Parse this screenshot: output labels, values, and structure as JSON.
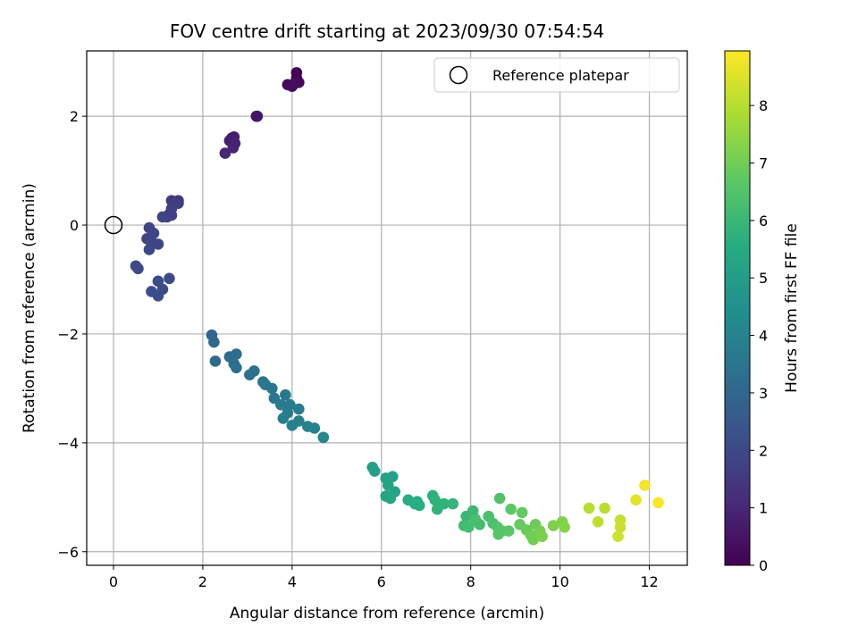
{
  "chart_data": {
    "type": "scatter",
    "title": "FOV centre drift starting at 2023/09/30 07:54:54",
    "xlabel": "Angular distance from reference (arcmin)",
    "ylabel": "Rotation from reference (arcmin)",
    "xlim": [
      -0.6,
      12.85
    ],
    "ylim": [
      -6.25,
      3.2
    ],
    "xticks": [
      0,
      2,
      4,
      6,
      8,
      10,
      12
    ],
    "yticks": [
      -6,
      -4,
      -2,
      0,
      2
    ],
    "grid": true,
    "legend": {
      "position": "top-right",
      "entries": [
        {
          "label": "Reference platepar",
          "marker": "open-circle"
        }
      ]
    },
    "reference_point": {
      "x": 0,
      "y": 0
    },
    "colorbar": {
      "label": "Hours from first FF file",
      "colormap": "viridis",
      "range": [
        0,
        8.95
      ],
      "ticks": [
        0,
        1,
        2,
        3,
        4,
        5,
        6,
        7,
        8
      ]
    },
    "points": [
      {
        "x": 4.1,
        "y": 2.8,
        "t": 0.05
      },
      {
        "x": 4.1,
        "y": 2.7,
        "t": 0.1
      },
      {
        "x": 4.15,
        "y": 2.62,
        "t": 0.15
      },
      {
        "x": 3.9,
        "y": 2.58,
        "t": 0.2
      },
      {
        "x": 4.0,
        "y": 2.55,
        "t": 0.25
      },
      {
        "x": 4.05,
        "y": 2.6,
        "t": 0.3
      },
      {
        "x": 3.2,
        "y": 2.0,
        "t": 0.5
      },
      {
        "x": 3.22,
        "y": 2.0,
        "t": 0.55
      },
      {
        "x": 2.65,
        "y": 1.6,
        "t": 0.7
      },
      {
        "x": 2.7,
        "y": 1.62,
        "t": 0.75
      },
      {
        "x": 2.6,
        "y": 1.55,
        "t": 0.8
      },
      {
        "x": 2.72,
        "y": 1.5,
        "t": 0.85
      },
      {
        "x": 2.68,
        "y": 1.42,
        "t": 0.9
      },
      {
        "x": 2.5,
        "y": 1.32,
        "t": 0.95
      },
      {
        "x": 1.3,
        "y": 0.45,
        "t": 1.5
      },
      {
        "x": 1.45,
        "y": 0.45,
        "t": 1.55
      },
      {
        "x": 1.45,
        "y": 0.4,
        "t": 1.6
      },
      {
        "x": 1.3,
        "y": 0.3,
        "t": 1.65
      },
      {
        "x": 1.25,
        "y": 0.2,
        "t": 1.7
      },
      {
        "x": 1.3,
        "y": 0.18,
        "t": 1.75
      },
      {
        "x": 1.2,
        "y": 0.15,
        "t": 1.75
      },
      {
        "x": 1.1,
        "y": 0.15,
        "t": 1.8
      },
      {
        "x": 0.8,
        "y": -0.05,
        "t": 1.8
      },
      {
        "x": 0.9,
        "y": -0.15,
        "t": 1.85
      },
      {
        "x": 0.75,
        "y": -0.25,
        "t": 1.85
      },
      {
        "x": 0.85,
        "y": -0.3,
        "t": 1.9
      },
      {
        "x": 1.0,
        "y": -0.35,
        "t": 1.9
      },
      {
        "x": 0.8,
        "y": -0.45,
        "t": 1.95
      },
      {
        "x": 0.5,
        "y": -0.75,
        "t": 2.0
      },
      {
        "x": 0.55,
        "y": -0.8,
        "t": 2.0
      },
      {
        "x": 1.25,
        "y": -0.98,
        "t": 2.05
      },
      {
        "x": 1.0,
        "y": -1.03,
        "t": 2.1
      },
      {
        "x": 1.1,
        "y": -1.18,
        "t": 2.1
      },
      {
        "x": 0.85,
        "y": -1.22,
        "t": 2.15
      },
      {
        "x": 1.0,
        "y": -1.3,
        "t": 2.15
      },
      {
        "x": 2.2,
        "y": -2.02,
        "t": 3.0
      },
      {
        "x": 2.25,
        "y": -2.15,
        "t": 3.05
      },
      {
        "x": 2.28,
        "y": -2.5,
        "t": 3.1
      },
      {
        "x": 2.6,
        "y": -2.42,
        "t": 3.15
      },
      {
        "x": 2.75,
        "y": -2.37,
        "t": 3.2
      },
      {
        "x": 2.7,
        "y": -2.55,
        "t": 3.25
      },
      {
        "x": 2.75,
        "y": -2.62,
        "t": 3.3
      },
      {
        "x": 3.15,
        "y": -2.68,
        "t": 3.35
      },
      {
        "x": 3.05,
        "y": -2.75,
        "t": 3.4
      },
      {
        "x": 3.35,
        "y": -2.88,
        "t": 3.45
      },
      {
        "x": 3.4,
        "y": -2.93,
        "t": 3.5
      },
      {
        "x": 3.55,
        "y": -3.0,
        "t": 3.55
      },
      {
        "x": 3.6,
        "y": -3.18,
        "t": 3.6
      },
      {
        "x": 3.85,
        "y": -3.12,
        "t": 3.65
      },
      {
        "x": 3.75,
        "y": -3.3,
        "t": 3.7
      },
      {
        "x": 3.95,
        "y": -3.3,
        "t": 3.7
      },
      {
        "x": 3.9,
        "y": -3.45,
        "t": 3.75
      },
      {
        "x": 3.8,
        "y": -3.55,
        "t": 3.8
      },
      {
        "x": 4.15,
        "y": -3.38,
        "t": 3.8
      },
      {
        "x": 4.15,
        "y": -3.6,
        "t": 3.85
      },
      {
        "x": 4.0,
        "y": -3.68,
        "t": 3.9
      },
      {
        "x": 4.35,
        "y": -3.7,
        "t": 3.95
      },
      {
        "x": 4.5,
        "y": -3.73,
        "t": 4.0
      },
      {
        "x": 4.7,
        "y": -3.9,
        "t": 4.1
      },
      {
        "x": 5.8,
        "y": -4.45,
        "t": 5.0
      },
      {
        "x": 5.85,
        "y": -4.52,
        "t": 5.05
      },
      {
        "x": 6.1,
        "y": -4.65,
        "t": 5.1
      },
      {
        "x": 6.25,
        "y": -4.62,
        "t": 5.15
      },
      {
        "x": 6.15,
        "y": -4.78,
        "t": 5.2
      },
      {
        "x": 6.3,
        "y": -4.9,
        "t": 5.25
      },
      {
        "x": 6.1,
        "y": -4.98,
        "t": 5.3
      },
      {
        "x": 6.2,
        "y": -5.02,
        "t": 5.35
      },
      {
        "x": 6.6,
        "y": -5.05,
        "t": 5.5
      },
      {
        "x": 6.8,
        "y": -5.08,
        "t": 5.55
      },
      {
        "x": 6.85,
        "y": -5.15,
        "t": 5.6
      },
      {
        "x": 6.75,
        "y": -5.12,
        "t": 5.65
      },
      {
        "x": 7.15,
        "y": -4.97,
        "t": 5.7
      },
      {
        "x": 7.2,
        "y": -5.05,
        "t": 5.75
      },
      {
        "x": 7.4,
        "y": -5.12,
        "t": 5.8
      },
      {
        "x": 7.25,
        "y": -5.22,
        "t": 5.85
      },
      {
        "x": 7.6,
        "y": -5.12,
        "t": 5.9
      },
      {
        "x": 7.9,
        "y": -5.35,
        "t": 6.0
      },
      {
        "x": 8.05,
        "y": -5.25,
        "t": 6.05
      },
      {
        "x": 8.1,
        "y": -5.4,
        "t": 6.1
      },
      {
        "x": 7.85,
        "y": -5.52,
        "t": 6.15
      },
      {
        "x": 7.95,
        "y": -5.55,
        "t": 6.2
      },
      {
        "x": 8.2,
        "y": -5.5,
        "t": 6.25
      },
      {
        "x": 8.1,
        "y": -5.42,
        "t": 6.3
      },
      {
        "x": 8.4,
        "y": -5.35,
        "t": 6.35
      },
      {
        "x": 8.5,
        "y": -5.48,
        "t": 6.4
      },
      {
        "x": 8.65,
        "y": -5.02,
        "t": 6.45
      },
      {
        "x": 8.6,
        "y": -5.55,
        "t": 6.5
      },
      {
        "x": 8.7,
        "y": -5.62,
        "t": 6.55
      },
      {
        "x": 8.62,
        "y": -5.68,
        "t": 6.6
      },
      {
        "x": 8.85,
        "y": -5.62,
        "t": 6.65
      },
      {
        "x": 8.9,
        "y": -5.22,
        "t": 6.7
      },
      {
        "x": 9.15,
        "y": -5.28,
        "t": 6.8
      },
      {
        "x": 9.1,
        "y": -5.5,
        "t": 6.85
      },
      {
        "x": 9.25,
        "y": -5.6,
        "t": 6.9
      },
      {
        "x": 9.45,
        "y": -5.5,
        "t": 6.95
      },
      {
        "x": 9.35,
        "y": -5.7,
        "t": 7.0
      },
      {
        "x": 9.4,
        "y": -5.78,
        "t": 7.05
      },
      {
        "x": 9.55,
        "y": -5.62,
        "t": 7.1
      },
      {
        "x": 9.6,
        "y": -5.72,
        "t": 7.15
      },
      {
        "x": 9.85,
        "y": -5.52,
        "t": 7.2
      },
      {
        "x": 10.05,
        "y": -5.45,
        "t": 7.25
      },
      {
        "x": 10.1,
        "y": -5.55,
        "t": 7.3
      },
      {
        "x": 10.65,
        "y": -5.2,
        "t": 8.0
      },
      {
        "x": 11.0,
        "y": -5.2,
        "t": 8.05
      },
      {
        "x": 10.85,
        "y": -5.45,
        "t": 8.1
      },
      {
        "x": 11.35,
        "y": -5.42,
        "t": 8.2
      },
      {
        "x": 11.35,
        "y": -5.55,
        "t": 8.25
      },
      {
        "x": 11.3,
        "y": -5.72,
        "t": 8.3
      },
      {
        "x": 11.7,
        "y": -5.05,
        "t": 8.6
      },
      {
        "x": 11.9,
        "y": -4.78,
        "t": 8.8
      },
      {
        "x": 12.2,
        "y": -5.1,
        "t": 8.9
      }
    ]
  }
}
